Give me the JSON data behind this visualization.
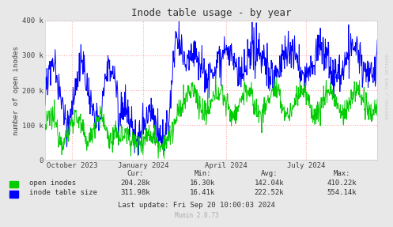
{
  "title": "Inode table usage - by year",
  "ylabel": "number of open inodes",
  "bg_color": "#e8e8e8",
  "plot_bg_color": "#ffffff",
  "grid_color": "#ffaaaa",
  "yticks": [
    0,
    100000,
    200000,
    300000,
    400000
  ],
  "ytick_labels": [
    "0",
    "100 k",
    "200 k",
    "300 k",
    "400 k"
  ],
  "xtick_labels": [
    "October 2023",
    "January 2024",
    "April 2024",
    "July 2024"
  ],
  "xtick_pos": [
    0.08,
    0.295,
    0.545,
    0.785
  ],
  "stats_header": [
    "Cur:",
    "Min:",
    "Avg:",
    "Max:"
  ],
  "stats": [
    {
      "name": "open inodes",
      "cur": "204.28k",
      "min": "16.30k",
      "avg": "142.04k",
      "max": "410.22k"
    },
    {
      "name": "inode table size",
      "cur": "311.98k",
      "min": "16.41k",
      "avg": "222.52k",
      "max": "554.14k"
    }
  ],
  "last_update": "Last update: Fri Sep 20 10:00:03 2024",
  "munin_version": "Munin 2.0.73",
  "watermark": "RRDTOOL / TOBI OETIKER",
  "green_color": "#00cc00",
  "blue_color": "#0000ff",
  "ylim": [
    0,
    400000
  ],
  "n_points": 800
}
